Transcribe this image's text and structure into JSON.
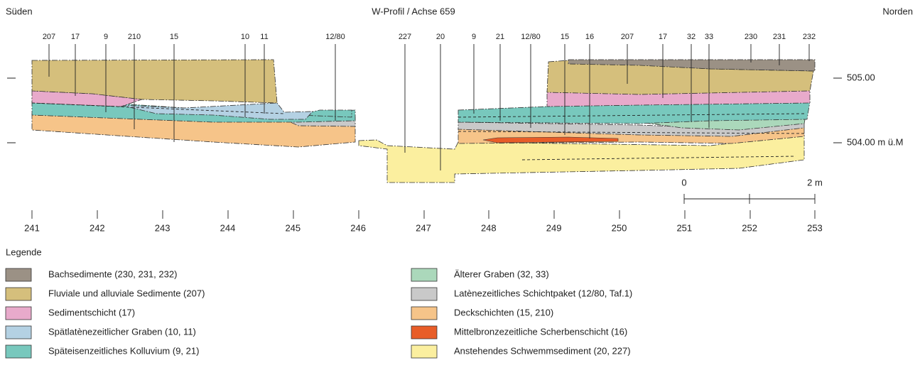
{
  "header": {
    "left": "Süden",
    "title": "W-Profil / Achse 659",
    "right": "Norden"
  },
  "find_labels": [
    "207",
    "17",
    "9",
    "210",
    "15",
    "10",
    "11",
    "12/80",
    "227",
    "20",
    "9",
    "21",
    "12/80",
    "15",
    "16",
    "207",
    "17",
    "32",
    "33",
    "230",
    "231",
    "232"
  ],
  "elevations": [
    "505.00",
    "504.00 m ü.M"
  ],
  "scale": {
    "start": "0",
    "end": "2 m"
  },
  "axis_labels": [
    "241",
    "242",
    "243",
    "244",
    "245",
    "246",
    "247",
    "248",
    "249",
    "250",
    "251",
    "252",
    "253"
  ],
  "legend": {
    "title": "Legende",
    "items": [
      {
        "label": "Bachsedimente (230, 231, 232)",
        "color": "#9b9185"
      },
      {
        "label": "Fluviale und alluviale Sedimente (207)",
        "color": "#d5bf7c"
      },
      {
        "label": "Sedimentschicht (17)",
        "color": "#e8aacb"
      },
      {
        "label": "Spätlatènezeitlicher Graben (10, 11)",
        "color": "#b4d1e3"
      },
      {
        "label": "Späteisenzeitliches Kolluvium (9, 21)",
        "color": "#78c8bd"
      },
      {
        "label": "Älterer Graben (32, 33)",
        "color": "#abd8bb"
      },
      {
        "label": "Latènezeitliches Schichtpaket (12/80, Taf.1)",
        "color": "#c9c9c9"
      },
      {
        "label": "Deckschichten (15, 210)",
        "color": "#f6c489"
      },
      {
        "label": "Mittelbronzezeitliche Scherbenschicht (16)",
        "color": "#e85d28"
      },
      {
        "label": "Anstehendes Schwemmsediment (20, 227)",
        "color": "#fbef9f"
      }
    ]
  }
}
